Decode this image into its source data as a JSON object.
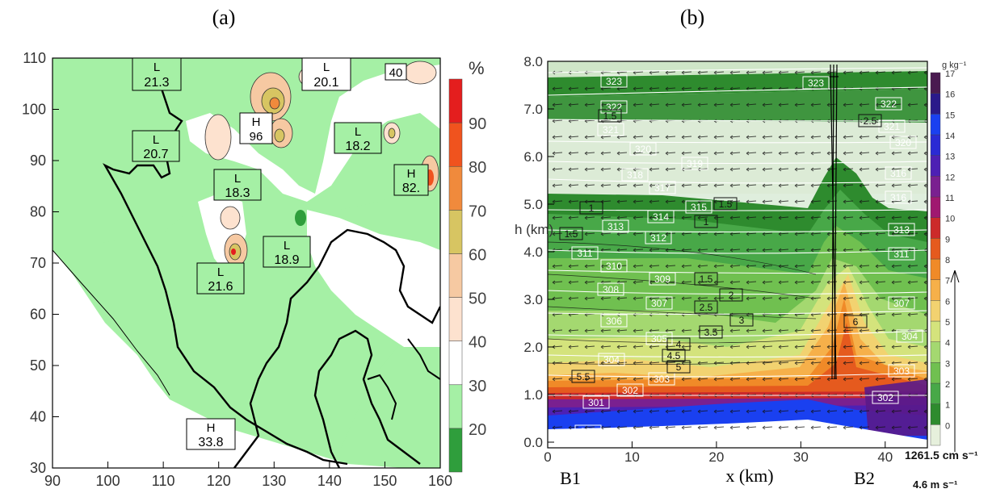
{
  "panel_a": {
    "label": "(a)",
    "legend_unit": "%",
    "legend_ticks": [
      "20",
      "30",
      "40",
      "50",
      "60",
      "70",
      "80",
      "90"
    ],
    "legend_colors": [
      "#2f9e3c",
      "#a5f0a5",
      "#ffffff",
      "#fde2cf",
      "#f6c9a2",
      "#d7c562",
      "#f08a3c",
      "#f0531e",
      "#e41e1e"
    ],
    "boxes": [
      {
        "id": "L1",
        "top": "L",
        "bottom": "21.3"
      },
      {
        "id": "L2",
        "top": "L",
        "bottom": "20.1"
      },
      {
        "id": "B40",
        "top": "",
        "bottom": "40"
      },
      {
        "id": "H96",
        "top": "H",
        "bottom": "96"
      },
      {
        "id": "L3",
        "top": "L",
        "bottom": "18.2"
      },
      {
        "id": "L4",
        "top": "L",
        "bottom": "20.7"
      },
      {
        "id": "L5",
        "top": "L",
        "bottom": "18.3"
      },
      {
        "id": "H82",
        "top": "H",
        "bottom": "82."
      },
      {
        "id": "L6",
        "top": "L",
        "bottom": "18.9"
      },
      {
        "id": "L7",
        "top": "L",
        "bottom": "21.6"
      },
      {
        "id": "H33",
        "top": "H",
        "bottom": "33.8"
      }
    ]
  },
  "panel_b": {
    "label": "(b)",
    "legend_unit": "g kg⁻¹",
    "legend_ticks": [
      "0",
      "1",
      "2",
      "3",
      "4",
      "5",
      "6",
      "7",
      "8",
      "9",
      "10",
      "11",
      "12",
      "13",
      "14",
      "15",
      "16",
      "17"
    ],
    "legend_colors": [
      "#e6f0dc",
      "#2e8b2e",
      "#48a848",
      "#70c050",
      "#a4d870",
      "#d4e37c",
      "#f2d270",
      "#f6b04a",
      "#f08a28",
      "#e55a1e",
      "#cc2a2a",
      "#a01870",
      "#7a2090",
      "#4d20b4",
      "#2a2ad4",
      "#1a40f0",
      "#2a1a8a",
      "#4a1a50"
    ],
    "bottom_labels": {
      "b1": "B1",
      "b2": "B2",
      "xlabel": "x (km)",
      "scale": "1261.5 cm s⁻¹",
      "vscale": "4.6 m s⁻¹"
    },
    "ylabel": "h (km)",
    "theta_labels": [
      "323",
      "322",
      "322",
      "321",
      "320",
      "320",
      "319",
      "318",
      "317",
      "316",
      "316",
      "315",
      "314",
      "313",
      "313",
      "312",
      "311",
      "311",
      "310",
      "309",
      "308",
      "307",
      "307",
      "306",
      "305",
      "304",
      "304",
      "303",
      "303",
      "302",
      "302",
      "301",
      "299",
      "321",
      "323"
    ],
    "q_labels": [
      "1.5",
      "1",
      "1.5",
      "1",
      "1.5",
      "2",
      "2.5",
      "3",
      "3.5",
      "4",
      "4.5",
      "5",
      "5.5",
      "6",
      "1.5",
      "2.5"
    ]
  },
  "chart_data": [
    {
      "type": "heatmap",
      "title": "(a)",
      "xlabel": "",
      "ylabel": "",
      "xlim": [
        90,
        160
      ],
      "ylim": [
        30,
        110
      ],
      "x_ticks": [
        90,
        100,
        110,
        120,
        130,
        140,
        150,
        160
      ],
      "y_ticks": [
        30,
        40,
        50,
        60,
        70,
        80,
        90,
        100,
        110
      ],
      "colorbar": {
        "unit": "%",
        "levels": [
          20,
          30,
          40,
          50,
          60,
          70,
          80,
          90
        ]
      },
      "annotations": [
        {
          "text": "L 21.3",
          "x": 111,
          "y": 106
        },
        {
          "text": "L 20.1",
          "x": 140,
          "y": 106
        },
        {
          "text": "40",
          "x": 151,
          "y": 106
        },
        {
          "text": "H 96",
          "x": 128,
          "y": 95
        },
        {
          "text": "L 18.2",
          "x": 148,
          "y": 93
        },
        {
          "text": "L 20.7",
          "x": 110,
          "y": 89
        },
        {
          "text": "L 18.3",
          "x": 125,
          "y": 84
        },
        {
          "text": "H 82.",
          "x": 158,
          "y": 84
        },
        {
          "text": "L 18.9",
          "x": 138,
          "y": 73
        },
        {
          "text": "L 21.6",
          "x": 121,
          "y": 67
        },
        {
          "text": "H 33.8",
          "x": 119,
          "y": 36
        }
      ]
    },
    {
      "type": "heatmap",
      "title": "(b)",
      "xlabel": "x (km)",
      "ylabel": "h (km)",
      "xlim": [
        0,
        45
      ],
      "ylim": [
        0,
        8
      ],
      "x_ticks": [
        0,
        10,
        20,
        30,
        40
      ],
      "y_ticks": [
        0.0,
        1.0,
        2.0,
        3.0,
        4.0,
        5.0,
        6.0,
        7.0,
        8.0
      ],
      "colorbar": {
        "unit": "g kg⁻¹",
        "levels": [
          0,
          1,
          2,
          3,
          4,
          5,
          6,
          7,
          8,
          9,
          10,
          11,
          12,
          13,
          14,
          15,
          16,
          17
        ]
      },
      "x_annotations": [
        {
          "text": "B1",
          "x": 2
        },
        {
          "text": "B2",
          "x": 37
        }
      ],
      "vector_scale": {
        "horizontal": "1261.5 cm s⁻¹",
        "vertical": "4.6 m s⁻¹"
      }
    }
  ]
}
